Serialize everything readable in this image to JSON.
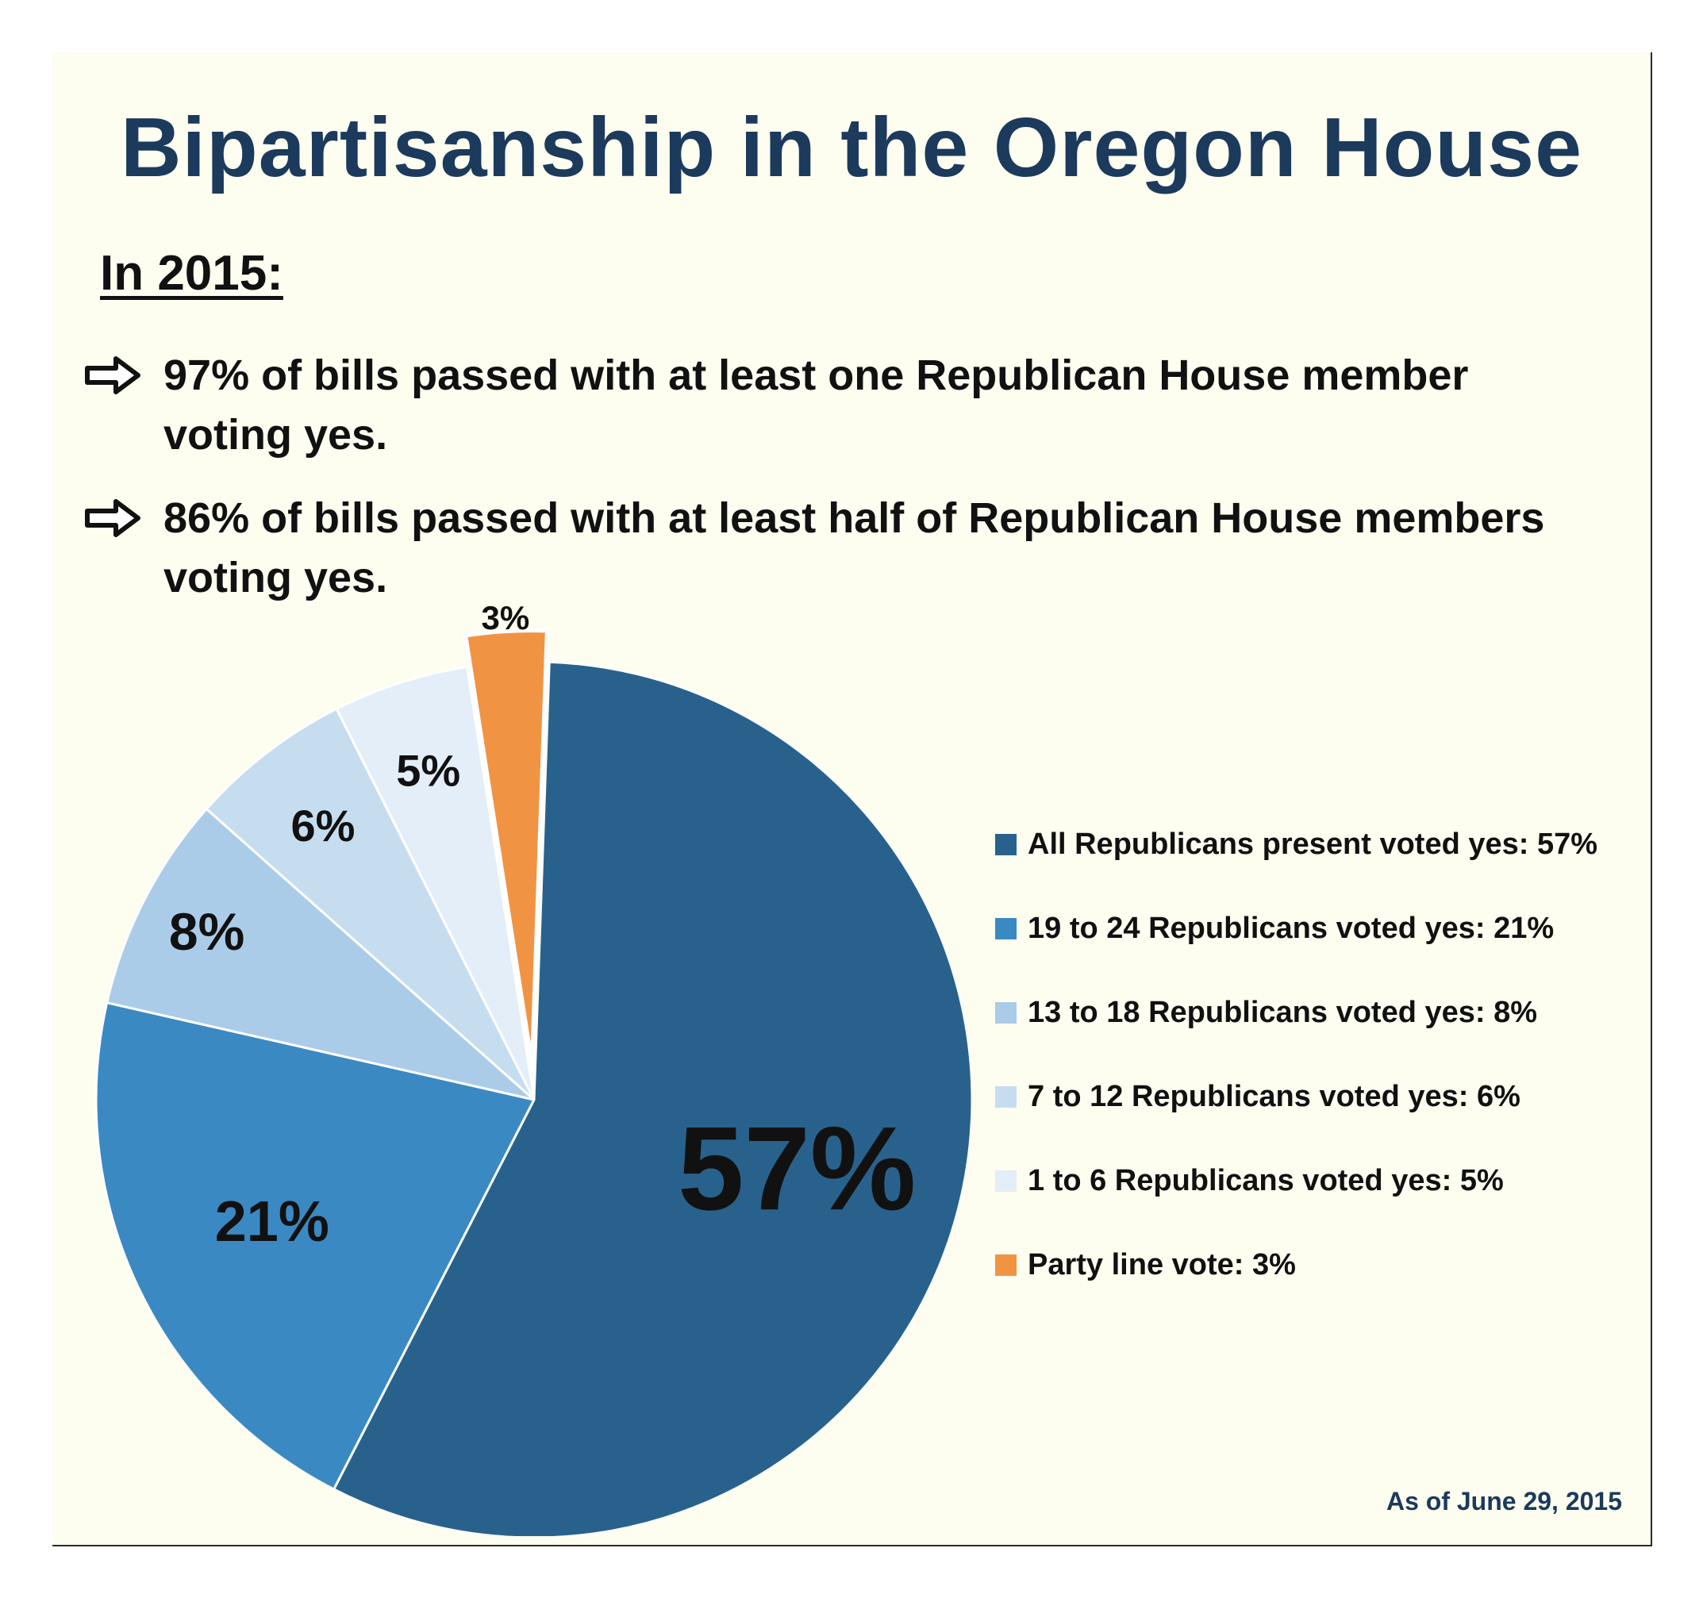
{
  "title": "Bipartisanship in the Oregon House",
  "subhead": "In 2015:",
  "bullets": [
    {
      "icon": "right-arrow-icon",
      "text": "97% of bills passed with at least one Republican House member voting yes."
    },
    {
      "icon": "right-arrow-icon",
      "text": "86% of bills passed with at least half of Republican House members voting yes."
    }
  ],
  "footnote": "As of June 29, 2015",
  "chart_data": {
    "type": "pie",
    "slices": [
      {
        "label": "All Republicans present voted yes: 57%",
        "value": 57,
        "data_label": "57%",
        "color": "#28628c",
        "exploded": false
      },
      {
        "label": "19 to 24 Republicans voted yes: 21%",
        "value": 21,
        "data_label": "21%",
        "color": "#3b89c2",
        "exploded": false
      },
      {
        "label": "13 to 18 Republicans voted yes: 8%",
        "value": 8,
        "data_label": "8%",
        "color": "#abcce8",
        "exploded": false
      },
      {
        "label": "7 to 12 Republicans voted yes: 6%",
        "value": 6,
        "data_label": "6%",
        "color": "#c6ddf0",
        "exploded": false
      },
      {
        "label": "1 to 6 Republicans voted yes: 5%",
        "value": 5,
        "data_label": "5%",
        "color": "#e3eef8",
        "exploded": false
      },
      {
        "label": "Party line vote: 3%",
        "value": 3,
        "data_label": "3%",
        "color": "#f09444",
        "exploded": true
      }
    ],
    "legend_position": "right"
  }
}
